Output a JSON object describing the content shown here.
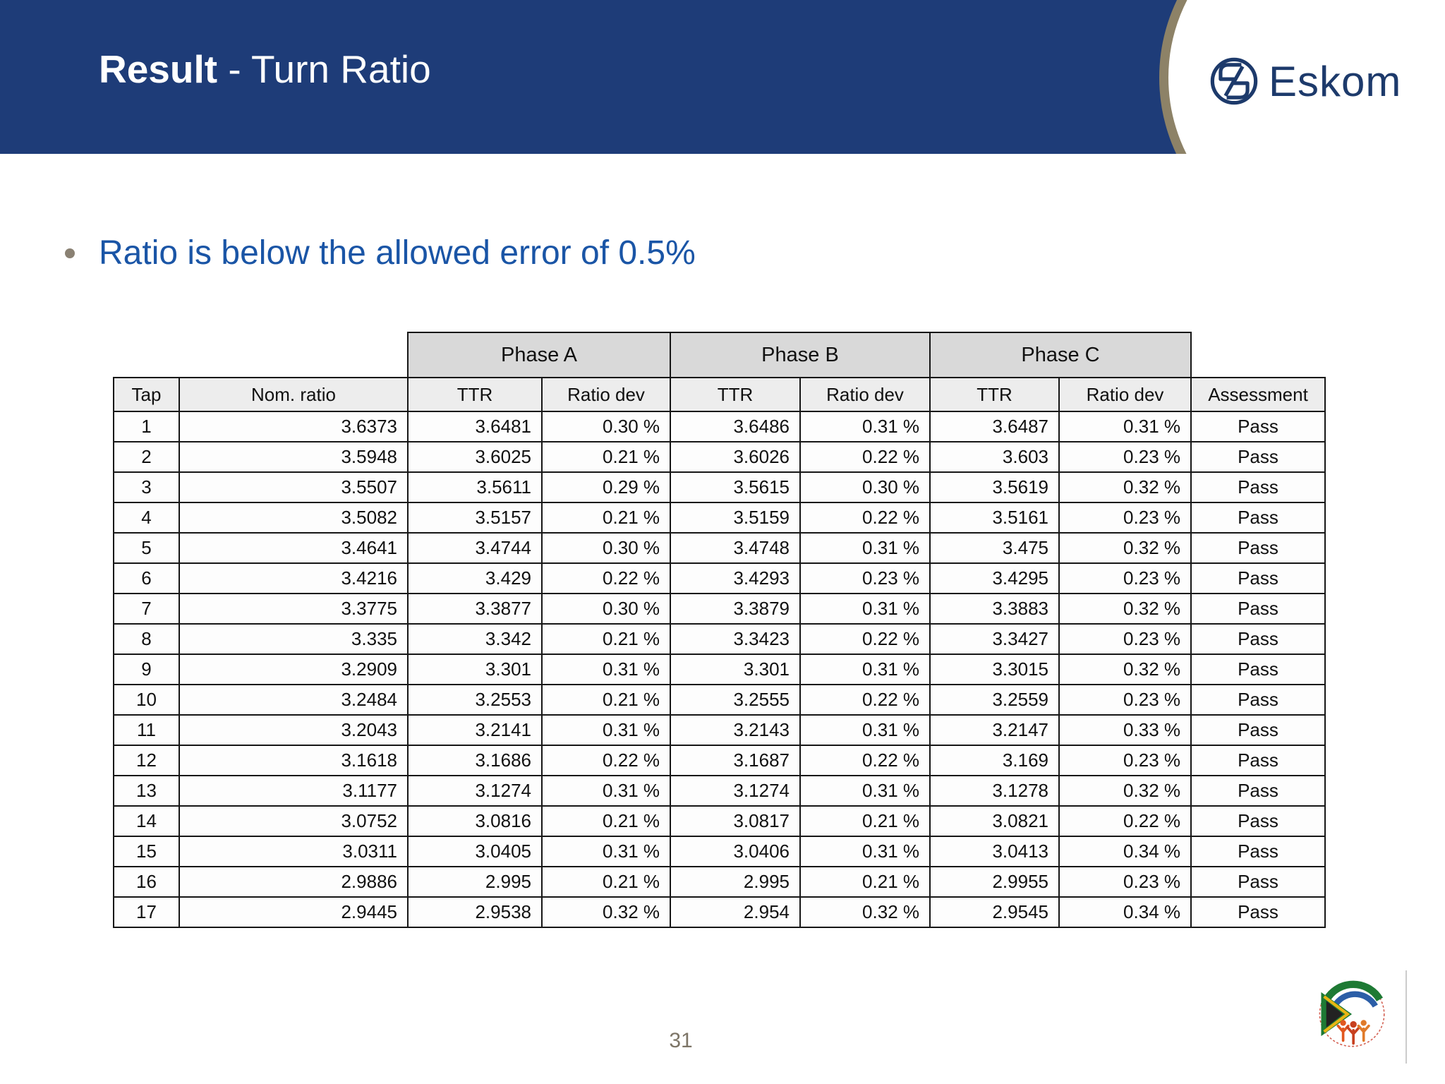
{
  "header": {
    "title_bold": "Result",
    "title_rest": " - Turn Ratio",
    "brand": "Eskom"
  },
  "bullet": "Ratio is below the allowed error of 0.5%",
  "table": {
    "phase_headers": [
      "Phase A",
      "Phase B",
      "Phase C"
    ],
    "columns": [
      "Tap",
      "Nom. ratio",
      "TTR",
      "Ratio dev",
      "TTR",
      "Ratio dev",
      "TTR",
      "Ratio dev",
      "Assessment"
    ],
    "rows": [
      [
        "1",
        "3.6373",
        "3.6481",
        "0.30 %",
        "3.6486",
        "0.31 %",
        "3.6487",
        "0.31 %",
        "Pass"
      ],
      [
        "2",
        "3.5948",
        "3.6025",
        "0.21 %",
        "3.6026",
        "0.22 %",
        "3.603",
        "0.23 %",
        "Pass"
      ],
      [
        "3",
        "3.5507",
        "3.5611",
        "0.29 %",
        "3.5615",
        "0.30 %",
        "3.5619",
        "0.32 %",
        "Pass"
      ],
      [
        "4",
        "3.5082",
        "3.5157",
        "0.21 %",
        "3.5159",
        "0.22 %",
        "3.5161",
        "0.23 %",
        "Pass"
      ],
      [
        "5",
        "3.4641",
        "3.4744",
        "0.30 %",
        "3.4748",
        "0.31 %",
        "3.475",
        "0.32 %",
        "Pass"
      ],
      [
        "6",
        "3.4216",
        "3.429",
        "0.22 %",
        "3.4293",
        "0.23 %",
        "3.4295",
        "0.23 %",
        "Pass"
      ],
      [
        "7",
        "3.3775",
        "3.3877",
        "0.30 %",
        "3.3879",
        "0.31 %",
        "3.3883",
        "0.32 %",
        "Pass"
      ],
      [
        "8",
        "3.335",
        "3.342",
        "0.21 %",
        "3.3423",
        "0.22 %",
        "3.3427",
        "0.23 %",
        "Pass"
      ],
      [
        "9",
        "3.2909",
        "3.301",
        "0.31 %",
        "3.301",
        "0.31 %",
        "3.3015",
        "0.32 %",
        "Pass"
      ],
      [
        "10",
        "3.2484",
        "3.2553",
        "0.21 %",
        "3.2555",
        "0.22 %",
        "3.2559",
        "0.23 %",
        "Pass"
      ],
      [
        "11",
        "3.2043",
        "3.2141",
        "0.31 %",
        "3.2143",
        "0.31 %",
        "3.2147",
        "0.33 %",
        "Pass"
      ],
      [
        "12",
        "3.1618",
        "3.1686",
        "0.22 %",
        "3.1687",
        "0.22 %",
        "3.169",
        "0.23 %",
        "Pass"
      ],
      [
        "13",
        "3.1177",
        "3.1274",
        "0.31 %",
        "3.1274",
        "0.31 %",
        "3.1278",
        "0.32 %",
        "Pass"
      ],
      [
        "14",
        "3.0752",
        "3.0816",
        "0.21 %",
        "3.0817",
        "0.21 %",
        "3.0821",
        "0.22 %",
        "Pass"
      ],
      [
        "15",
        "3.0311",
        "3.0405",
        "0.31 %",
        "3.0406",
        "0.31 %",
        "3.0413",
        "0.34 %",
        "Pass"
      ],
      [
        "16",
        "2.9886",
        "2.995",
        "0.21 %",
        "2.995",
        "0.21 %",
        "2.9955",
        "0.23 %",
        "Pass"
      ],
      [
        "17",
        "2.9445",
        "2.9538",
        "0.32 %",
        "2.954",
        "0.32 %",
        "2.9545",
        "0.34 %",
        "Pass"
      ]
    ]
  },
  "page_number": "31",
  "colors": {
    "bar_blue": "#1e3c78",
    "curve_tan": "#8d8267",
    "eskom_navy": "#1d3a6b",
    "bullet_blue": "#1a55a6",
    "phase_gray": "#d9d9d9",
    "header_gray": "#ededed",
    "page_number_gray": "#7d7567"
  }
}
